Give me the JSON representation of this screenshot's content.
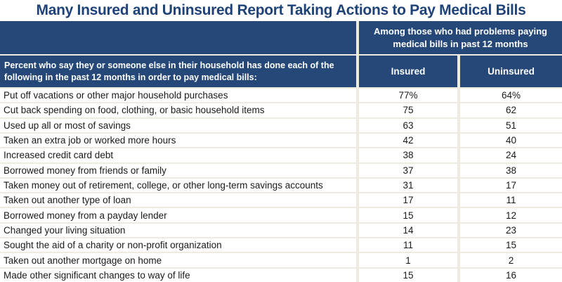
{
  "page": {
    "title": "Many Insured and Uninsured Report Taking Actions to Pay Medical Bills"
  },
  "table": {
    "span_header": "Among those who had problems paying medical bills in past 12 months",
    "stub_header": "Percent who say they or someone else in their household has done each of the following in the past 12 months in order to pay medical bills:",
    "columns": [
      "Insured",
      "Uninsured"
    ],
    "rows": [
      {
        "label": "Put off vacations or other major household purchases",
        "insured": "77%",
        "uninsured": "64%"
      },
      {
        "label": "Cut back spending on food, clothing, or basic household items",
        "insured": "75",
        "uninsured": "62"
      },
      {
        "label": "Used up all or most of savings",
        "insured": "63",
        "uninsured": "51"
      },
      {
        "label": "Taken an extra job or worked more hours",
        "insured": "42",
        "uninsured": "40"
      },
      {
        "label": "Increased credit card debt",
        "insured": "38",
        "uninsured": "24"
      },
      {
        "label": "Borrowed money from friends or family",
        "insured": "37",
        "uninsured": "38"
      },
      {
        "label": "Taken money out of retirement, college, or other long-term savings accounts",
        "insured": "31",
        "uninsured": "17"
      },
      {
        "label": "Taken out another type of loan",
        "insured": "17",
        "uninsured": "11"
      },
      {
        "label": "Borrowed money from a payday lender",
        "insured": "15",
        "uninsured": "12"
      },
      {
        "label": "Changed your living situation",
        "insured": "14",
        "uninsured": "23"
      },
      {
        "label": "Sought the aid of a charity or non-profit organization",
        "insured": "11",
        "uninsured": "15"
      },
      {
        "label": "Taken out another mortgage on home",
        "insured": "1",
        "uninsured": "2"
      },
      {
        "label": "Made other significant changes to way of life",
        "insured": "15",
        "uninsured": "16"
      }
    ]
  },
  "colors": {
    "header_blue": "#254878",
    "title_blue": "#1f4278",
    "grid_line": "#efebe0",
    "cell_background": "#ffffff",
    "body_text": "#1a1a1a"
  },
  "chart_data": {
    "type": "table",
    "title": "Many Insured and Uninsured Report Taking Actions to Pay Medical Bills",
    "group_header": "Among those who had problems paying medical bills in past 12 months",
    "stub_header": "Percent who say they or someone else in their household has done each of the following in the past 12 months in order to pay medical bills:",
    "units": "percent",
    "categories": [
      "Put off vacations or other major household purchases",
      "Cut back spending on food, clothing, or basic household items",
      "Used up all or most of savings",
      "Taken an extra job or worked more hours",
      "Increased credit card debt",
      "Borrowed money from friends or family",
      "Taken money out of retirement, college, or other long-term savings accounts",
      "Taken out another type of loan",
      "Borrowed money from a payday lender",
      "Changed your living situation",
      "Sought the aid of a charity or non-profit organization",
      "Taken out another mortgage on home",
      "Made other significant changes to way of life"
    ],
    "series": [
      {
        "name": "Insured",
        "values": [
          77,
          75,
          63,
          42,
          38,
          37,
          31,
          17,
          15,
          14,
          11,
          1,
          15
        ]
      },
      {
        "name": "Uninsured",
        "values": [
          64,
          62,
          51,
          40,
          24,
          38,
          17,
          11,
          12,
          23,
          15,
          2,
          16
        ]
      }
    ]
  }
}
